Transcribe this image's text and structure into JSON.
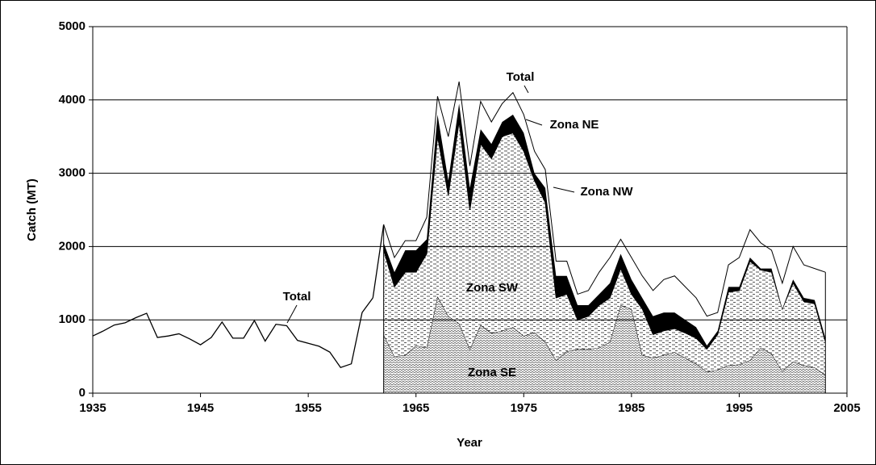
{
  "chart_data": {
    "type": "area",
    "stacked": true,
    "xlabel": "Year",
    "ylabel": "Catch (MT)",
    "xlim": [
      1935,
      2005
    ],
    "xticks": [
      1935,
      1945,
      1955,
      1965,
      1975,
      1985,
      1995,
      2005
    ],
    "ylim": [
      0,
      5000
    ],
    "yticks": [
      0,
      1000,
      2000,
      3000,
      4000,
      5000
    ],
    "grid": true,
    "x": [
      1935,
      1936,
      1937,
      1938,
      1939,
      1940,
      1941,
      1942,
      1943,
      1944,
      1945,
      1946,
      1947,
      1948,
      1949,
      1950,
      1951,
      1952,
      1953,
      1954,
      1955,
      1956,
      1957,
      1958,
      1959,
      1960,
      1961,
      1962,
      1963,
      1964,
      1965,
      1966,
      1967,
      1968,
      1969,
      1970,
      1971,
      1972,
      1973,
      1974,
      1975,
      1976,
      1977,
      1978,
      1979,
      1980,
      1981,
      1982,
      1983,
      1984,
      1985,
      1986,
      1987,
      1988,
      1989,
      1990,
      1991,
      1992,
      1993,
      1994,
      1995,
      1996,
      1997,
      1998,
      1999,
      2000,
      2001,
      2002,
      2003
    ],
    "series": [
      {
        "name": "Total",
        "type": "line",
        "color": "#000000",
        "values": [
          780,
          850,
          930,
          960,
          1030,
          1090,
          760,
          780,
          810,
          740,
          660,
          760,
          970,
          750,
          750,
          990,
          710,
          940,
          920,
          720,
          680,
          640,
          560,
          350,
          400,
          1100,
          1300,
          null,
          null,
          null,
          null,
          null,
          null,
          null,
          null,
          null,
          null,
          null,
          null,
          null,
          null,
          null,
          null,
          null,
          null,
          null,
          null,
          null,
          null,
          null,
          null,
          null,
          null,
          null,
          null,
          null,
          null,
          null,
          null,
          null,
          null,
          null,
          null,
          null,
          null,
          null,
          null,
          null,
          null
        ]
      },
      {
        "name": "Zona SE",
        "type": "area",
        "color": "#808080",
        "values": [
          null,
          null,
          null,
          null,
          null,
          null,
          null,
          null,
          null,
          null,
          null,
          null,
          null,
          null,
          null,
          null,
          null,
          null,
          null,
          null,
          null,
          null,
          null,
          null,
          null,
          null,
          null,
          800,
          500,
          520,
          650,
          620,
          1320,
          1050,
          950,
          600,
          930,
          820,
          850,
          900,
          780,
          830,
          700,
          450,
          570,
          600,
          600,
          620,
          700,
          1200,
          1150,
          520,
          480,
          520,
          560,
          480,
          400,
          290,
          320,
          380,
          390,
          450,
          620,
          540,
          300,
          430,
          380,
          350,
          250
        ]
      },
      {
        "name": "Zona SW",
        "type": "area",
        "color": "#404040",
        "values": [
          null,
          null,
          null,
          null,
          null,
          null,
          null,
          null,
          null,
          null,
          null,
          null,
          null,
          null,
          null,
          null,
          null,
          null,
          null,
          null,
          null,
          null,
          null,
          null,
          null,
          null,
          null,
          1150,
          950,
          1130,
          1000,
          1280,
          2180,
          1650,
          2750,
          1900,
          2470,
          2380,
          2650,
          2650,
          2520,
          2070,
          1900,
          850,
          780,
          400,
          450,
          580,
          600,
          500,
          200,
          630,
          320,
          330,
          320,
          340,
          350,
          310,
          480,
          1000,
          1010,
          1350,
          1060,
          1110,
          850,
          1070,
          870,
          870,
          450
        ]
      },
      {
        "name": "Zona NW",
        "type": "area",
        "color": "#000000",
        "values": [
          null,
          null,
          null,
          null,
          null,
          null,
          null,
          null,
          null,
          null,
          null,
          null,
          null,
          null,
          null,
          null,
          null,
          null,
          null,
          null,
          null,
          null,
          null,
          null,
          null,
          null,
          null,
          100,
          200,
          300,
          300,
          200,
          300,
          200,
          250,
          300,
          200,
          200,
          200,
          250,
          250,
          100,
          200,
          300,
          250,
          200,
          150,
          150,
          200,
          200,
          200,
          150,
          250,
          250,
          220,
          180,
          150,
          50,
          50,
          70,
          50,
          50,
          20,
          50,
          0,
          50,
          50,
          50,
          50
        ]
      },
      {
        "name": "Zona NE",
        "type": "area",
        "color": "#ffffff",
        "values": [
          null,
          null,
          null,
          null,
          null,
          null,
          null,
          null,
          null,
          null,
          null,
          null,
          null,
          null,
          null,
          null,
          null,
          null,
          null,
          null,
          null,
          null,
          null,
          null,
          null,
          null,
          null,
          250,
          200,
          130,
          130,
          300,
          250,
          600,
          300,
          300,
          380,
          300,
          250,
          300,
          250,
          300,
          250,
          200,
          200,
          150,
          200,
          300,
          350,
          200,
          300,
          300,
          350,
          450,
          500,
          450,
          400,
          400,
          250,
          300,
          400,
          380,
          350,
          250,
          350,
          450,
          450,
          430,
          900
        ]
      }
    ]
  }
}
